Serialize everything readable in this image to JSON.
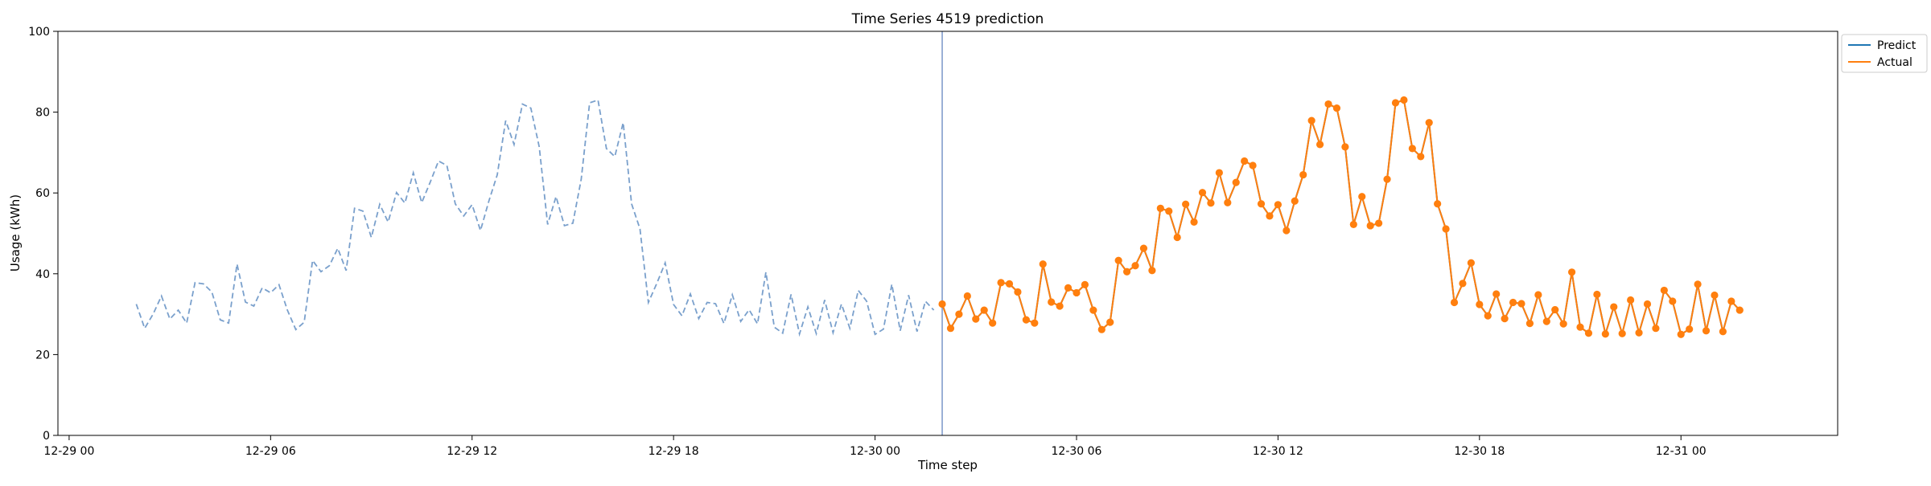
{
  "chart_data": {
    "type": "line",
    "title": "Time Series 4519 prediction",
    "xlabel": "Time step",
    "ylabel": "Usage (kWh)",
    "ylim": [
      0,
      100
    ],
    "yticks": [
      0,
      20,
      40,
      60,
      80,
      100
    ],
    "xlim": [
      "2024-12-28T23:40",
      "2024-12-31T04:40"
    ],
    "xticks": [
      {
        "value": "2024-12-29T00:00",
        "label": "12-29 00"
      },
      {
        "value": "2024-12-29T06:00",
        "label": "12-29 06"
      },
      {
        "value": "2024-12-29T12:00",
        "label": "12-29 12"
      },
      {
        "value": "2024-12-29T18:00",
        "label": "12-29 18"
      },
      {
        "value": "2024-12-30T00:00",
        "label": "12-30 00"
      },
      {
        "value": "2024-12-30T06:00",
        "label": "12-30 06"
      },
      {
        "value": "2024-12-30T12:00",
        "label": "12-30 12"
      },
      {
        "value": "2024-12-30T18:00",
        "label": "12-30 18"
      },
      {
        "value": "2024-12-31T00:00",
        "label": "12-31 00"
      }
    ],
    "forecast_start": "2024-12-30T02:00",
    "legend": {
      "position": "top-right outside",
      "entries": [
        "Predict",
        "Actual"
      ]
    },
    "colors": {
      "predict": "#1f77b4",
      "actual": "#ff7f0e",
      "history": "#7aa0cc",
      "divider": "#7a96c8"
    },
    "history": {
      "start": "2024-12-29T02:00",
      "step_minutes": 15,
      "values": [
        32.5,
        26.5,
        30.0,
        34.5,
        28.8,
        31.0,
        27.8,
        37.8,
        37.5,
        35.5,
        28.6,
        27.8,
        42.4,
        33.0,
        32.0,
        36.5,
        35.3,
        37.3,
        31.0,
        26.2,
        28.0,
        43.3,
        40.5,
        42.0,
        46.3,
        40.8,
        56.2,
        55.5,
        49.0,
        57.2,
        52.8,
        60.1,
        57.5,
        65.0,
        57.6,
        62.6,
        67.9,
        66.8,
        57.3,
        54.3,
        57.1,
        50.7,
        58.0,
        64.5,
        77.9,
        72.0,
        82.0,
        81.0,
        71.4,
        52.2,
        59.1,
        51.9,
        52.5,
        63.4,
        82.3,
        83.0,
        71.0,
        69.0,
        77.4,
        57.3,
        51.1,
        32.9,
        37.6,
        42.7,
        32.4,
        29.6,
        35.0,
        28.9,
        32.9,
        32.6,
        27.7,
        34.8,
        28.2,
        31.1,
        27.6,
        40.4,
        26.8,
        25.3,
        34.9,
        25.1,
        31.8,
        25.2,
        33.5,
        25.4,
        32.5,
        26.5,
        35.9,
        33.2,
        25.0,
        26.3,
        37.4,
        25.9,
        34.7,
        25.7,
        33.2,
        31.0
      ]
    },
    "series": [
      {
        "name": "Predict",
        "start": "2024-12-30T02:00",
        "step_minutes": 15,
        "values": [
          32.5,
          26.5,
          30.0,
          34.5,
          28.8,
          31.0,
          27.8,
          37.8,
          37.5,
          35.5,
          28.6,
          27.8,
          42.4,
          33.0,
          32.0,
          36.5,
          35.3,
          37.3,
          31.0,
          26.2,
          28.0,
          43.3,
          40.5,
          42.0,
          46.3,
          40.8,
          56.2,
          55.5,
          49.0,
          57.2,
          52.8,
          60.1,
          57.5,
          65.0,
          57.6,
          62.6,
          67.9,
          66.8,
          57.3,
          54.3,
          57.1,
          50.7,
          58.0,
          64.5,
          77.9,
          72.0,
          82.0,
          81.0,
          71.4,
          52.2,
          59.1,
          51.9,
          52.5,
          63.4,
          82.3,
          83.0,
          71.0,
          69.0,
          77.4,
          57.3,
          51.1,
          32.9,
          37.6,
          42.7,
          32.4,
          29.6,
          35.0,
          28.9,
          32.9,
          32.6,
          27.7,
          34.8,
          28.2,
          31.1,
          27.6,
          40.4,
          26.8,
          25.3,
          34.9,
          25.1,
          31.8,
          25.2,
          33.5,
          25.4,
          32.5,
          26.5,
          35.9,
          33.2,
          25.0,
          26.3,
          37.4,
          25.9,
          34.7,
          25.7,
          33.2,
          31.0
        ]
      },
      {
        "name": "Actual",
        "start": "2024-12-30T02:00",
        "step_minutes": 15,
        "values": [
          32.5,
          26.5,
          30.0,
          34.5,
          28.8,
          31.0,
          27.8,
          37.8,
          37.5,
          35.5,
          28.6,
          27.8,
          42.4,
          33.0,
          32.0,
          36.5,
          35.3,
          37.3,
          31.0,
          26.2,
          28.0,
          43.3,
          40.5,
          42.0,
          46.3,
          40.8,
          56.2,
          55.5,
          49.0,
          57.2,
          52.8,
          60.1,
          57.5,
          65.0,
          57.6,
          62.6,
          67.9,
          66.8,
          57.3,
          54.3,
          57.1,
          50.7,
          58.0,
          64.5,
          77.9,
          72.0,
          82.0,
          81.0,
          71.4,
          52.2,
          59.1,
          51.9,
          52.5,
          63.4,
          82.3,
          83.0,
          71.0,
          69.0,
          77.4,
          57.3,
          51.1,
          32.9,
          37.6,
          42.7,
          32.4,
          29.6,
          35.0,
          28.9,
          32.9,
          32.6,
          27.7,
          34.8,
          28.2,
          31.1,
          27.6,
          40.4,
          26.8,
          25.3,
          34.9,
          25.1,
          31.8,
          25.2,
          33.5,
          25.4,
          32.5,
          26.5,
          35.9,
          33.2,
          25.0,
          26.3,
          37.4,
          25.9,
          34.7,
          25.7,
          33.2,
          31.0
        ]
      }
    ]
  }
}
